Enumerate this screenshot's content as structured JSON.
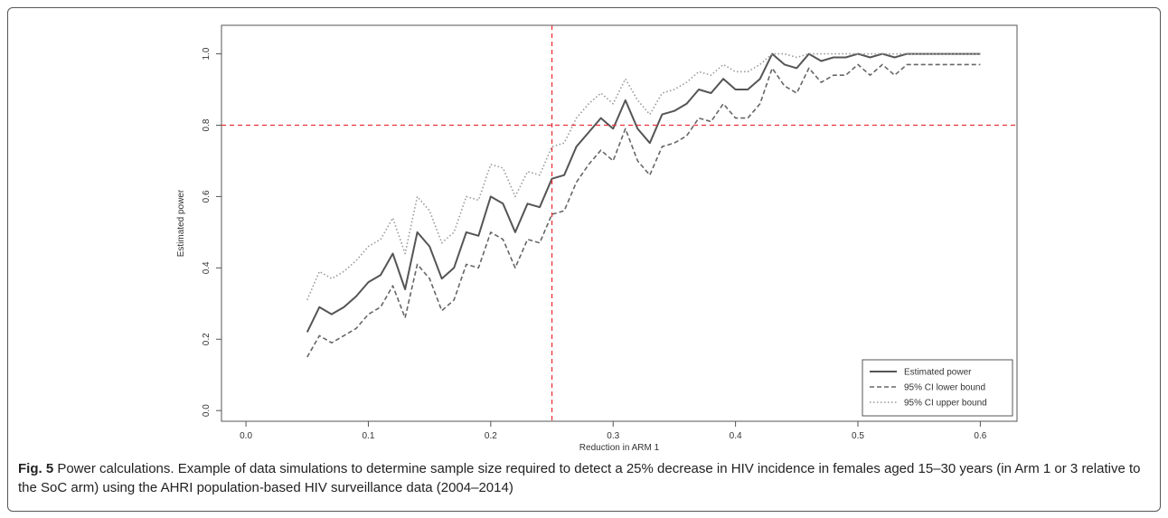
{
  "chart_data": {
    "type": "line",
    "xlabel": "Reduction in ARM 1",
    "ylabel": "Estimated power",
    "xlim": [
      -0.02,
      0.63
    ],
    "ylim": [
      -0.03,
      1.08
    ],
    "x_ticks": [
      "0.0",
      "0.1",
      "0.2",
      "0.3",
      "0.4",
      "0.5",
      "0.6"
    ],
    "y_ticks": [
      "0.0",
      "0.2",
      "0.4",
      "0.6",
      "0.8",
      "1.0"
    ],
    "reference_lines": {
      "x": 0.25,
      "y": 0.8,
      "color": "#e8333a"
    },
    "legend_position": "bottom-right",
    "x": [
      0.05,
      0.06,
      0.07,
      0.08,
      0.09,
      0.1,
      0.11,
      0.12,
      0.13,
      0.14,
      0.15,
      0.16,
      0.17,
      0.18,
      0.19,
      0.2,
      0.21,
      0.22,
      0.23,
      0.24,
      0.25,
      0.26,
      0.27,
      0.28,
      0.29,
      0.3,
      0.31,
      0.32,
      0.33,
      0.34,
      0.35,
      0.36,
      0.37,
      0.38,
      0.39,
      0.4,
      0.41,
      0.42,
      0.43,
      0.44,
      0.45,
      0.46,
      0.47,
      0.48,
      0.49,
      0.5,
      0.51,
      0.52,
      0.53,
      0.54,
      0.55,
      0.56,
      0.57,
      0.58,
      0.59,
      0.6
    ],
    "series": [
      {
        "name": "Estimated power",
        "style": "solid",
        "color": "#555555",
        "values": [
          0.22,
          0.29,
          0.27,
          0.29,
          0.32,
          0.36,
          0.38,
          0.44,
          0.34,
          0.5,
          0.46,
          0.37,
          0.4,
          0.5,
          0.49,
          0.6,
          0.58,
          0.5,
          0.58,
          0.57,
          0.65,
          0.66,
          0.74,
          0.78,
          0.82,
          0.79,
          0.87,
          0.79,
          0.75,
          0.83,
          0.84,
          0.86,
          0.9,
          0.89,
          0.93,
          0.9,
          0.9,
          0.93,
          1.0,
          0.97,
          0.96,
          1.0,
          0.98,
          0.99,
          0.99,
          1.0,
          0.99,
          1.0,
          0.99,
          1.0,
          1.0,
          1.0,
          1.0,
          1.0,
          1.0,
          1.0
        ]
      },
      {
        "name": "95% CI lower bound",
        "style": "dashed",
        "color": "#666666",
        "values": [
          0.15,
          0.21,
          0.19,
          0.21,
          0.23,
          0.27,
          0.29,
          0.35,
          0.26,
          0.41,
          0.37,
          0.28,
          0.31,
          0.41,
          0.4,
          0.5,
          0.48,
          0.4,
          0.48,
          0.47,
          0.55,
          0.56,
          0.64,
          0.69,
          0.73,
          0.7,
          0.79,
          0.7,
          0.66,
          0.74,
          0.75,
          0.77,
          0.82,
          0.81,
          0.86,
          0.82,
          0.82,
          0.86,
          0.96,
          0.91,
          0.89,
          0.96,
          0.92,
          0.94,
          0.94,
          0.97,
          0.94,
          0.97,
          0.94,
          0.97,
          0.97,
          0.97,
          0.97,
          0.97,
          0.97,
          0.97
        ]
      },
      {
        "name": "95% CI upper bound",
        "style": "dotted",
        "color": "#999999",
        "values": [
          0.31,
          0.39,
          0.37,
          0.39,
          0.42,
          0.46,
          0.48,
          0.54,
          0.44,
          0.6,
          0.56,
          0.47,
          0.5,
          0.6,
          0.59,
          0.69,
          0.68,
          0.6,
          0.67,
          0.66,
          0.74,
          0.75,
          0.82,
          0.86,
          0.89,
          0.86,
          0.93,
          0.87,
          0.83,
          0.89,
          0.9,
          0.92,
          0.95,
          0.94,
          0.97,
          0.95,
          0.95,
          0.97,
          1.0,
          1.0,
          0.99,
          1.0,
          1.0,
          1.0,
          1.0,
          1.0,
          1.0,
          1.0,
          1.0,
          1.0,
          1.0,
          1.0,
          1.0,
          1.0,
          1.0,
          1.0
        ]
      }
    ]
  },
  "caption": {
    "label": "Fig. 5",
    "text": " Power calculations. Example of data simulations to determine sample size required to detect a 25% decrease in HIV incidence in females aged 15–30 years (in Arm 1 or 3 relative to the SoC arm) using the AHRI population-based HIV surveillance data (2004–2014)"
  }
}
